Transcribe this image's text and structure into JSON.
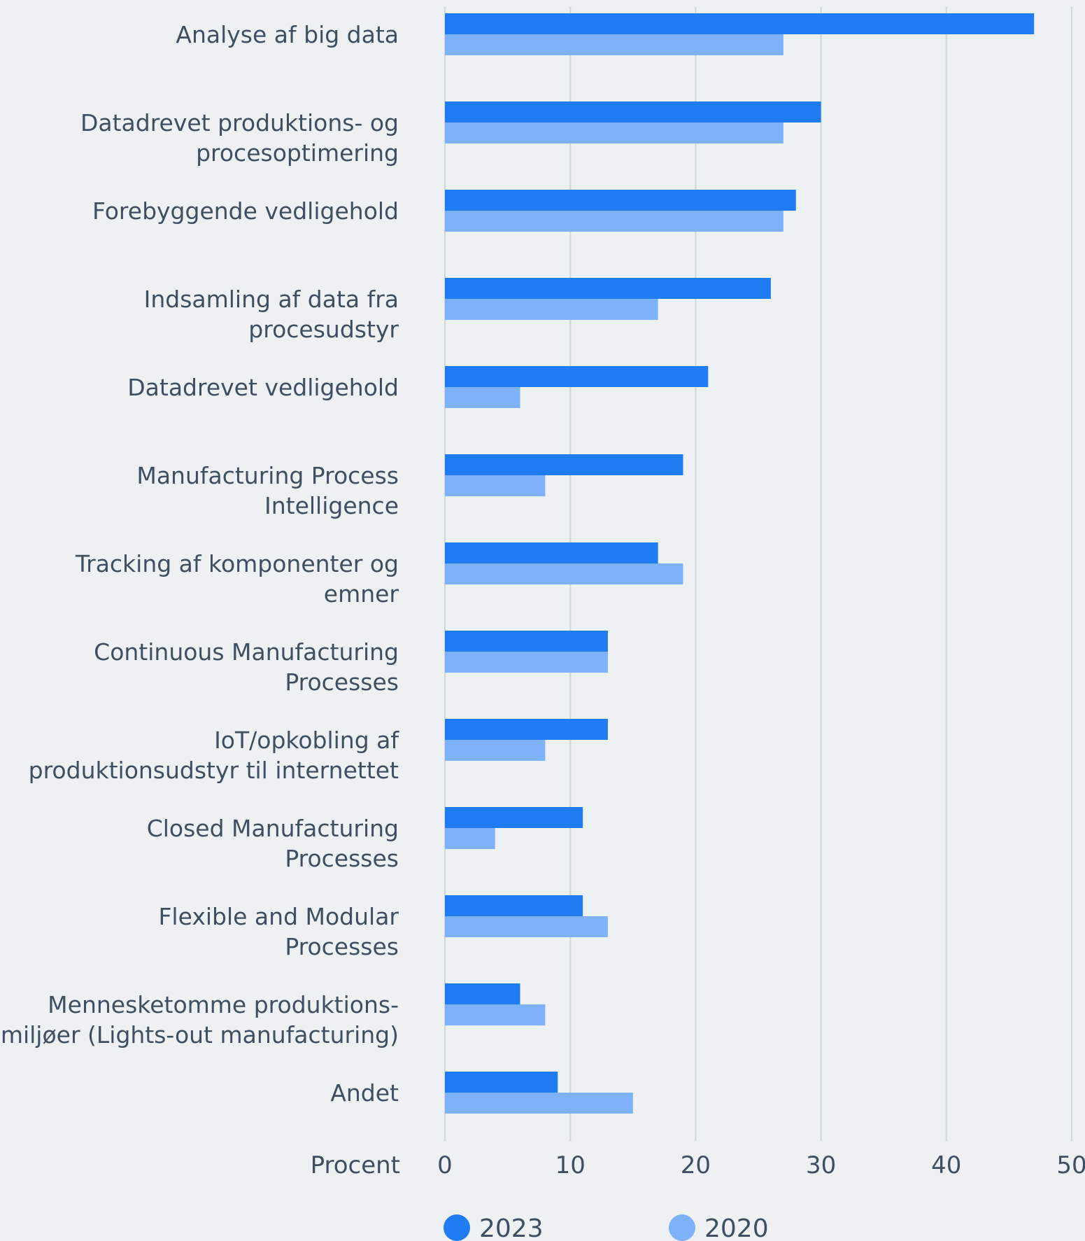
{
  "chart_data": {
    "type": "bar",
    "orientation": "horizontal",
    "categories": [
      "Analyse af big data",
      "Datadrevet produktions- og procesoptimering",
      "Forebyggende vedligehold",
      "Indsamling af data fra procesudstyr",
      "Datadrevet vedligehold",
      "Manufacturing Process Intelligence",
      "Tracking af komponenter og emner",
      "Continuous Manufacturing Processes",
      "IoT/opkobling af produktionsudstyr til internettet",
      "Closed Manufacturing Processes",
      "Flexible and Modular Processes",
      "Mennesketomme produktions-miljøer (Lights-out manufacturing)",
      "Andet"
    ],
    "category_lines": [
      [
        "Analyse af big data"
      ],
      [
        "Datadrevet produktions- og",
        "procesoptimering"
      ],
      [
        "Forebyggende vedligehold"
      ],
      [
        "Indsamling af data fra",
        "procesudstyr"
      ],
      [
        "Datadrevet vedligehold"
      ],
      [
        "Manufacturing Process",
        "Intelligence"
      ],
      [
        "Tracking af komponenter og",
        "emner"
      ],
      [
        "Continuous Manufacturing",
        "Processes"
      ],
      [
        "IoT/opkobling af",
        "produktionsudstyr til internettet"
      ],
      [
        "Closed Manufacturing",
        "Processes"
      ],
      [
        "Flexible and Modular",
        "Processes"
      ],
      [
        "Mennesketomme produktions-",
        "miljøer (Lights-out manufacturing)"
      ],
      [
        "Andet"
      ]
    ],
    "series": [
      {
        "name": "2023",
        "color": "#1f7cf2",
        "values": [
          47,
          30,
          28,
          26,
          21,
          19,
          17,
          13,
          13,
          11,
          11,
          6,
          9
        ]
      },
      {
        "name": "2020",
        "color": "#7db2fb",
        "values": [
          27,
          27,
          27,
          17,
          6,
          8,
          19,
          13,
          8,
          4,
          13,
          8,
          15
        ]
      }
    ],
    "xlabel": "Procent",
    "xlim": [
      0,
      50
    ],
    "xticks": [
      0,
      10,
      20,
      30,
      40,
      50
    ],
    "tick_labels": [
      "0",
      "10",
      "20",
      "30",
      "40",
      "50"
    ],
    "grid": "vertical",
    "grid_color": "#cdd7da",
    "background": "#edf1f3",
    "text_color": "#3f4f60",
    "legend_position": "bottom"
  }
}
